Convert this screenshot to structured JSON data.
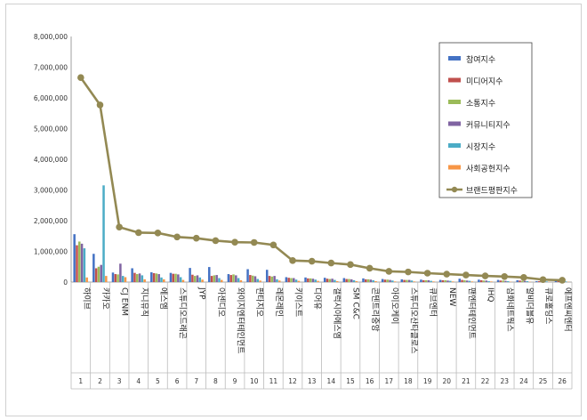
{
  "chart_data": {
    "type": "bar",
    "ylim": [
      0,
      8000000
    ],
    "yticks": [
      "0",
      "1,000,000",
      "2,000,000",
      "3,000,000",
      "4,000,000",
      "5,000,000",
      "6,000,000",
      "7,000,000",
      "8,000,000"
    ],
    "ytick_values": [
      0,
      1000000,
      2000000,
      3000000,
      4000000,
      5000000,
      6000000,
      7000000,
      8000000
    ],
    "grid": false,
    "legend_position": "top-right",
    "categories": [
      "하이브",
      "카카오",
      "CJ ENM",
      "지니뮤직",
      "에스엠",
      "스튜디오드래곤",
      "JYP",
      "아센디오",
      "와이지엔터테인먼트",
      "판타지오",
      "레몬레인",
      "키이스트",
      "디어유",
      "갤럭시아에스엠",
      "SM C&C",
      "콘텐트리중앙",
      "아이오케이",
      "스튜디오산타클로스",
      "큐브엔터",
      "NEW",
      "팬엔터테인먼트",
      "IHQ",
      "삼화네트웍스",
      "알비더블유",
      "큐로홀딩스",
      "에프엔씨엔터"
    ],
    "ranks": [
      "1",
      "2",
      "3",
      "4",
      "5",
      "6",
      "7",
      "8",
      "9",
      "10",
      "11",
      "12",
      "13",
      "14",
      "15",
      "16",
      "17",
      "18",
      "19",
      "20",
      "21",
      "22",
      "23",
      "24",
      "25",
      "26"
    ],
    "series": [
      {
        "name": "참여지수",
        "color": "#4472c4",
        "values": [
          1560000,
          920000,
          310000,
          450000,
          320000,
          300000,
          460000,
          490000,
          260000,
          420000,
          400000,
          160000,
          150000,
          140000,
          130000,
          120000,
          100000,
          90000,
          80000,
          70000,
          110000,
          80000,
          70000,
          60000,
          30000,
          40000
        ]
      },
      {
        "name": "미디어지수",
        "color": "#c0504d",
        "values": [
          1200000,
          450000,
          260000,
          300000,
          290000,
          270000,
          240000,
          200000,
          230000,
          230000,
          200000,
          140000,
          120000,
          110000,
          100000,
          90000,
          80000,
          70000,
          60000,
          60000,
          70000,
          60000,
          50000,
          50000,
          30000,
          30000
        ]
      },
      {
        "name": "소통지수",
        "color": "#9bbb59",
        "values": [
          1320000,
          500000,
          250000,
          260000,
          280000,
          270000,
          200000,
          220000,
          250000,
          210000,
          180000,
          130000,
          120000,
          100000,
          100000,
          90000,
          80000,
          70000,
          60000,
          60000,
          60000,
          50000,
          50000,
          40000,
          30000,
          30000
        ]
      },
      {
        "name": "커뮤니티지수",
        "color": "#8064a2",
        "values": [
          1250000,
          560000,
          600000,
          280000,
          260000,
          250000,
          220000,
          230000,
          220000,
          190000,
          200000,
          130000,
          110000,
          110000,
          90000,
          80000,
          70000,
          70000,
          60000,
          50000,
          50000,
          50000,
          40000,
          40000,
          20000,
          20000
        ]
      },
      {
        "name": "시장지수",
        "color": "#4bacc6",
        "values": [
          1100000,
          3150000,
          200000,
          220000,
          150000,
          160000,
          150000,
          130000,
          130000,
          100000,
          90000,
          80000,
          80000,
          70000,
          60000,
          60000,
          50000,
          50000,
          40000,
          40000,
          40000,
          30000,
          30000,
          30000,
          20000,
          20000
        ]
      },
      {
        "name": "사회공헌지수",
        "color": "#f79646",
        "values": [
          150000,
          200000,
          160000,
          90000,
          90000,
          70000,
          80000,
          70000,
          60000,
          50000,
          50000,
          40000,
          40000,
          30000,
          30000,
          30000,
          20000,
          20000,
          20000,
          20000,
          20000,
          20000,
          10000,
          10000,
          10000,
          10000
        ]
      }
    ],
    "line_series": {
      "name": "브랜드평판지수",
      "color": "#938953",
      "values": [
        6660000,
        5770000,
        1790000,
        1610000,
        1600000,
        1470000,
        1430000,
        1350000,
        1300000,
        1290000,
        1210000,
        700000,
        680000,
        620000,
        570000,
        450000,
        350000,
        330000,
        290000,
        260000,
        230000,
        200000,
        180000,
        150000,
        80000,
        60000
      ]
    }
  }
}
